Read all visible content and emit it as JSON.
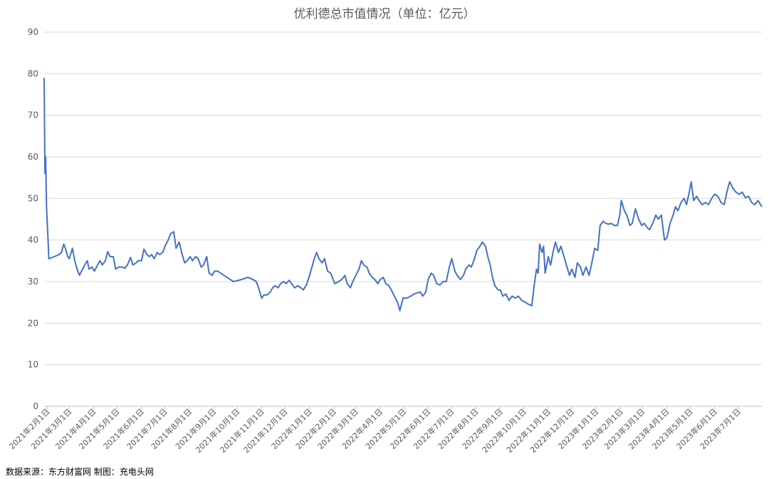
{
  "chart_data": {
    "type": "line",
    "title": "优利德总市值情况（单位：亿元）",
    "ylim": [
      0,
      90
    ],
    "yticks": [
      0,
      10,
      20,
      30,
      40,
      50,
      60,
      70,
      80,
      90
    ],
    "grid": true,
    "legend": "none",
    "colors": {
      "series": "#4472c4",
      "grid": "#d9d9d9",
      "text": "#595959"
    },
    "xtick_labels": [
      "2021年2月1日",
      "2021年3月1日",
      "2021年4月1日",
      "2021年5月1日",
      "2021年6月1日",
      "2021年7月1日",
      "2021年8月1日",
      "2021年9月1日",
      "2021年10月1日",
      "2021年11月1日",
      "2021年12月1日",
      "2022年1月1日",
      "2022年2月1日",
      "2022年3月1日",
      "2022年4月1日",
      "2022年5月1日",
      "2022年6月1日",
      "2022年7月1日",
      "2022年8月1日",
      "2022年9月1日",
      "2022年10月1日",
      "2022年11月1日",
      "2022年12月1日",
      "2023年1月1日",
      "2023年2月1日",
      "2023年3月1日",
      "2023年4月1日",
      "2023年5月1日",
      "2023年6月1日",
      "2023年7月1日"
    ],
    "x_range": [
      "2021-01-28",
      "2023-07-31"
    ],
    "series": [
      {
        "points": [
          [
            "2021-01-28",
            79
          ],
          [
            "2021-01-29",
            56
          ],
          [
            "2021-01-30",
            60
          ],
          [
            "2021-01-31",
            48
          ],
          [
            "2021-02-02",
            40
          ],
          [
            "2021-02-03",
            35.5
          ],
          [
            "2021-02-10",
            36
          ],
          [
            "2021-02-16",
            36.5
          ],
          [
            "2021-02-19",
            37
          ],
          [
            "2021-02-22",
            39
          ],
          [
            "2021-02-24",
            38
          ],
          [
            "2021-02-27",
            36
          ],
          [
            "2021-03-01",
            35.5
          ],
          [
            "2021-03-05",
            38
          ],
          [
            "2021-03-08",
            35
          ],
          [
            "2021-03-11",
            33
          ],
          [
            "2021-03-14",
            31.5
          ],
          [
            "2021-03-18",
            33
          ],
          [
            "2021-03-22",
            34.5
          ],
          [
            "2021-03-24",
            35
          ],
          [
            "2021-03-26",
            33
          ],
          [
            "2021-03-30",
            33.5
          ],
          [
            "2021-04-02",
            32.5
          ],
          [
            "2021-04-06",
            34
          ],
          [
            "2021-04-09",
            35
          ],
          [
            "2021-04-12",
            34
          ],
          [
            "2021-04-16",
            35
          ],
          [
            "2021-04-19",
            37.2
          ],
          [
            "2021-04-22",
            36
          ],
          [
            "2021-04-26",
            36
          ],
          [
            "2021-04-29",
            33
          ],
          [
            "2021-05-03",
            33.5
          ],
          [
            "2021-05-07",
            33.5
          ],
          [
            "2021-05-11",
            33.2
          ],
          [
            "2021-05-14",
            34
          ],
          [
            "2021-05-18",
            35.8
          ],
          [
            "2021-05-21",
            34
          ],
          [
            "2021-05-25",
            34.5
          ],
          [
            "2021-05-28",
            35
          ],
          [
            "2021-06-01",
            35
          ],
          [
            "2021-06-04",
            37.8
          ],
          [
            "2021-06-08",
            36.5
          ],
          [
            "2021-06-11",
            36
          ],
          [
            "2021-06-14",
            36.5
          ],
          [
            "2021-06-17",
            35.5
          ],
          [
            "2021-06-21",
            37
          ],
          [
            "2021-06-24",
            36.5
          ],
          [
            "2021-06-28",
            37
          ],
          [
            "2021-07-01",
            38.5
          ],
          [
            "2021-07-05",
            40
          ],
          [
            "2021-07-08",
            41.5
          ],
          [
            "2021-07-12",
            42
          ],
          [
            "2021-07-15",
            38
          ],
          [
            "2021-07-19",
            39.5
          ],
          [
            "2021-07-22",
            37
          ],
          [
            "2021-07-26",
            34.5
          ],
          [
            "2021-07-29",
            35
          ],
          [
            "2021-08-02",
            36
          ],
          [
            "2021-08-05",
            35
          ],
          [
            "2021-08-09",
            36
          ],
          [
            "2021-08-12",
            35.5
          ],
          [
            "2021-08-16",
            33.5
          ],
          [
            "2021-08-19",
            34
          ],
          [
            "2021-08-23",
            36
          ],
          [
            "2021-08-26",
            32
          ],
          [
            "2021-08-30",
            31.5
          ],
          [
            "2021-09-02",
            32.5
          ],
          [
            "2021-09-06",
            32.5
          ],
          [
            "2021-09-10",
            32
          ],
          [
            "2021-09-14",
            31.5
          ],
          [
            "2021-09-18",
            31
          ],
          [
            "2021-09-22",
            30.5
          ],
          [
            "2021-09-26",
            30
          ],
          [
            "2021-10-01",
            30.2
          ],
          [
            "2021-10-08",
            30.6
          ],
          [
            "2021-10-14",
            31
          ],
          [
            "2021-10-20",
            30.6
          ],
          [
            "2021-10-25",
            30
          ],
          [
            "2021-10-28",
            28.5
          ],
          [
            "2021-11-01",
            26
          ],
          [
            "2021-11-04",
            26.8
          ],
          [
            "2021-11-08",
            26.8
          ],
          [
            "2021-11-12",
            27.5
          ],
          [
            "2021-11-15",
            28.5
          ],
          [
            "2021-11-18",
            29
          ],
          [
            "2021-11-22",
            28.5
          ],
          [
            "2021-11-25",
            29.5
          ],
          [
            "2021-11-29",
            30
          ],
          [
            "2021-12-02",
            29.5
          ],
          [
            "2021-12-06",
            30.3
          ],
          [
            "2021-12-09",
            29.5
          ],
          [
            "2021-12-13",
            28.5
          ],
          [
            "2021-12-17",
            29
          ],
          [
            "2021-12-21",
            28.5
          ],
          [
            "2021-12-24",
            28
          ],
          [
            "2021-12-28",
            29.2
          ],
          [
            "2022-01-01",
            31.5
          ],
          [
            "2022-01-04",
            33.5
          ],
          [
            "2022-01-07",
            35.5
          ],
          [
            "2022-01-10",
            37
          ],
          [
            "2022-01-13",
            35.5
          ],
          [
            "2022-01-17",
            34.5
          ],
          [
            "2022-01-20",
            35.5
          ],
          [
            "2022-01-24",
            32.5
          ],
          [
            "2022-01-28",
            32
          ],
          [
            "2022-02-02",
            29.5
          ],
          [
            "2022-02-07",
            30
          ],
          [
            "2022-02-11",
            30.5
          ],
          [
            "2022-02-15",
            31.5
          ],
          [
            "2022-02-18",
            29.5
          ],
          [
            "2022-02-22",
            28.5
          ],
          [
            "2022-02-25",
            30
          ],
          [
            "2022-03-01",
            31.5
          ],
          [
            "2022-03-05",
            33
          ],
          [
            "2022-03-08",
            35
          ],
          [
            "2022-03-11",
            34
          ],
          [
            "2022-03-15",
            33.5
          ],
          [
            "2022-03-18",
            32
          ],
          [
            "2022-03-22",
            31
          ],
          [
            "2022-03-25",
            30.5
          ],
          [
            "2022-03-29",
            29.5
          ],
          [
            "2022-04-01",
            30.5
          ],
          [
            "2022-04-05",
            31
          ],
          [
            "2022-04-08",
            29.5
          ],
          [
            "2022-04-12",
            29
          ],
          [
            "2022-04-15",
            28
          ],
          [
            "2022-04-19",
            26.5
          ],
          [
            "2022-04-23",
            25
          ],
          [
            "2022-04-26",
            23
          ],
          [
            "2022-04-30",
            26
          ],
          [
            "2022-05-05",
            26
          ],
          [
            "2022-05-10",
            26.5
          ],
          [
            "2022-05-14",
            27
          ],
          [
            "2022-05-18",
            27.3
          ],
          [
            "2022-05-22",
            27.5
          ],
          [
            "2022-05-25",
            26.5
          ],
          [
            "2022-05-29",
            27.5
          ],
          [
            "2022-06-01",
            30.5
          ],
          [
            "2022-06-05",
            32
          ],
          [
            "2022-06-08",
            31.5
          ],
          [
            "2022-06-12",
            29.5
          ],
          [
            "2022-06-16",
            29.2
          ],
          [
            "2022-06-20",
            30
          ],
          [
            "2022-06-24",
            30
          ],
          [
            "2022-06-28",
            33.5
          ],
          [
            "2022-07-01",
            35.5
          ],
          [
            "2022-07-05",
            32.5
          ],
          [
            "2022-07-08",
            31.5
          ],
          [
            "2022-07-12",
            30.5
          ],
          [
            "2022-07-16",
            31.5
          ],
          [
            "2022-07-19",
            33
          ],
          [
            "2022-07-23",
            34
          ],
          [
            "2022-07-26",
            33.5
          ],
          [
            "2022-07-30",
            35.5
          ],
          [
            "2022-08-02",
            37.5
          ],
          [
            "2022-08-06",
            38.5
          ],
          [
            "2022-08-09",
            39.5
          ],
          [
            "2022-08-13",
            38.5
          ],
          [
            "2022-08-16",
            36
          ],
          [
            "2022-08-19",
            34
          ],
          [
            "2022-08-22",
            31
          ],
          [
            "2022-08-25",
            29
          ],
          [
            "2022-08-29",
            28
          ],
          [
            "2022-09-01",
            28
          ],
          [
            "2022-09-04",
            26.5
          ],
          [
            "2022-09-08",
            27
          ],
          [
            "2022-09-12",
            25.5
          ],
          [
            "2022-09-16",
            26.5
          ],
          [
            "2022-09-20",
            26
          ],
          [
            "2022-09-24",
            26.5
          ],
          [
            "2022-09-28",
            25.5
          ],
          [
            "2022-10-03",
            25
          ],
          [
            "2022-10-07",
            24.5
          ],
          [
            "2022-10-11",
            24.2
          ],
          [
            "2022-10-14",
            29
          ],
          [
            "2022-10-17",
            33
          ],
          [
            "2022-10-19",
            32
          ],
          [
            "2022-10-21",
            39
          ],
          [
            "2022-10-24",
            37
          ],
          [
            "2022-10-26",
            38.5
          ],
          [
            "2022-10-28",
            32
          ],
          [
            "2022-11-01",
            36
          ],
          [
            "2022-11-04",
            34
          ],
          [
            "2022-11-07",
            37
          ],
          [
            "2022-11-10",
            39.5
          ],
          [
            "2022-11-14",
            37
          ],
          [
            "2022-11-17",
            38.5
          ],
          [
            "2022-11-21",
            36
          ],
          [
            "2022-11-24",
            34
          ],
          [
            "2022-11-28",
            31.5
          ],
          [
            "2022-12-01",
            33
          ],
          [
            "2022-12-05",
            31
          ],
          [
            "2022-12-08",
            34.5
          ],
          [
            "2022-12-12",
            33.5
          ],
          [
            "2022-12-15",
            31.5
          ],
          [
            "2022-12-19",
            33.5
          ],
          [
            "2022-12-23",
            31.5
          ],
          [
            "2022-12-27",
            35
          ],
          [
            "2022-12-30",
            38
          ],
          [
            "2023-01-03",
            37.5
          ],
          [
            "2023-01-06",
            43.5
          ],
          [
            "2023-01-10",
            44.5
          ],
          [
            "2023-01-13",
            44
          ],
          [
            "2023-01-17",
            43.8
          ],
          [
            "2023-01-20",
            44
          ],
          [
            "2023-01-24",
            43.5
          ],
          [
            "2023-01-28",
            43.5
          ],
          [
            "2023-01-31",
            46
          ],
          [
            "2023-02-02",
            49.5
          ],
          [
            "2023-02-06",
            47
          ],
          [
            "2023-02-09",
            46
          ],
          [
            "2023-02-13",
            43.5
          ],
          [
            "2023-02-16",
            44
          ],
          [
            "2023-02-20",
            47.5
          ],
          [
            "2023-02-24",
            45
          ],
          [
            "2023-02-28",
            43.5
          ],
          [
            "2023-03-03",
            44
          ],
          [
            "2023-03-07",
            43
          ],
          [
            "2023-03-10",
            42.5
          ],
          [
            "2023-03-14",
            44
          ],
          [
            "2023-03-18",
            46
          ],
          [
            "2023-03-21",
            45
          ],
          [
            "2023-03-25",
            46
          ],
          [
            "2023-03-29",
            40
          ],
          [
            "2023-04-01",
            40.5
          ],
          [
            "2023-04-05",
            44
          ],
          [
            "2023-04-09",
            46
          ],
          [
            "2023-04-12",
            48
          ],
          [
            "2023-04-15",
            47
          ],
          [
            "2023-04-19",
            49
          ],
          [
            "2023-04-23",
            50
          ],
          [
            "2023-04-26",
            48.5
          ],
          [
            "2023-04-29",
            51
          ],
          [
            "2023-05-02",
            54
          ],
          [
            "2023-05-05",
            49.5
          ],
          [
            "2023-05-09",
            50.5
          ],
          [
            "2023-05-12",
            49.5
          ],
          [
            "2023-05-16",
            48.5
          ],
          [
            "2023-05-20",
            49
          ],
          [
            "2023-05-24",
            48.5
          ],
          [
            "2023-05-28",
            50
          ],
          [
            "2023-06-01",
            51
          ],
          [
            "2023-06-05",
            50.5
          ],
          [
            "2023-06-09",
            49
          ],
          [
            "2023-06-13",
            48.5
          ],
          [
            "2023-06-17",
            52
          ],
          [
            "2023-06-20",
            54
          ],
          [
            "2023-06-24",
            52.5
          ],
          [
            "2023-06-28",
            51.5
          ],
          [
            "2023-07-02",
            51
          ],
          [
            "2023-07-06",
            51.5
          ],
          [
            "2023-07-10",
            50.2
          ],
          [
            "2023-07-14",
            50.5
          ],
          [
            "2023-07-18",
            49
          ],
          [
            "2023-07-22",
            48.5
          ],
          [
            "2023-07-26",
            49.5
          ],
          [
            "2023-07-31",
            48
          ]
        ]
      }
    ]
  },
  "source_note": "数据来源：东方财富网 制图：充电头网"
}
